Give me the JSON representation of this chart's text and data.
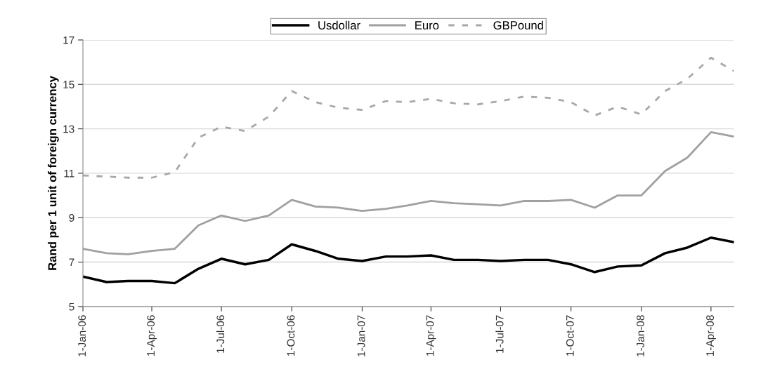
{
  "chart_data": {
    "type": "line",
    "ylabel": "Rand per 1 unit of foreign currency",
    "x": [
      "2006-01-01",
      "2006-02-01",
      "2006-03-01",
      "2006-04-01",
      "2006-05-01",
      "2006-06-01",
      "2006-07-01",
      "2006-08-01",
      "2006-09-01",
      "2006-10-01",
      "2006-11-01",
      "2006-12-01",
      "2007-01-01",
      "2007-02-01",
      "2007-03-01",
      "2007-04-01",
      "2007-05-01",
      "2007-06-01",
      "2007-07-01",
      "2007-08-01",
      "2007-09-01",
      "2007-10-01",
      "2007-11-01",
      "2007-12-01",
      "2008-01-01",
      "2008-02-01",
      "2008-03-01",
      "2008-04-01",
      "2008-05-01"
    ],
    "series": [
      {
        "name": "Usdollar",
        "color": "#000000",
        "line_style": "solid",
        "values": [
          6.35,
          6.1,
          6.15,
          6.15,
          6.05,
          6.7,
          7.15,
          6.9,
          7.1,
          7.8,
          7.5,
          7.15,
          7.05,
          7.25,
          7.25,
          7.3,
          7.1,
          7.1,
          7.05,
          7.1,
          7.1,
          6.9,
          6.55,
          6.8,
          6.85,
          7.4,
          7.65,
          8.1,
          7.9
        ]
      },
      {
        "name": "Euro",
        "color": "#a0a0a0",
        "line_style": "solid",
        "values": [
          7.6,
          7.4,
          7.35,
          7.5,
          7.6,
          8.65,
          9.1,
          8.85,
          9.1,
          9.8,
          9.5,
          9.45,
          9.3,
          9.4,
          9.55,
          9.75,
          9.65,
          9.6,
          9.55,
          9.75,
          9.75,
          9.8,
          9.45,
          10.0,
          10.0,
          11.1,
          11.7,
          12.85,
          12.65
        ]
      },
      {
        "name": "GBPound",
        "color": "#a8a8a8",
        "line_style": "dashed",
        "values": [
          10.9,
          10.85,
          10.8,
          10.8,
          11.05,
          12.6,
          13.1,
          12.9,
          13.55,
          14.7,
          14.2,
          13.95,
          13.85,
          14.25,
          14.2,
          14.35,
          14.15,
          14.1,
          14.25,
          14.45,
          14.4,
          14.2,
          13.6,
          14.0,
          13.65,
          14.7,
          15.25,
          16.2,
          15.6
        ]
      }
    ],
    "xlim": [
      "2006-01-01",
      "2008-05-01"
    ],
    "xticks": [
      {
        "value": "2006-01-01",
        "label": "1-Jan-06"
      },
      {
        "value": "2006-04-01",
        "label": "1-Apr-06"
      },
      {
        "value": "2006-07-01",
        "label": "1-Jul-06"
      },
      {
        "value": "2006-10-01",
        "label": "1-Oct-06"
      },
      {
        "value": "2007-01-01",
        "label": "1-Jan-07"
      },
      {
        "value": "2007-04-01",
        "label": "1-Apr-07"
      },
      {
        "value": "2007-07-01",
        "label": "1-Jul-07"
      },
      {
        "value": "2007-10-01",
        "label": "1-Oct-07"
      },
      {
        "value": "2008-01-01",
        "label": "1-Jan-08"
      },
      {
        "value": "2008-04-01",
        "label": "1-Apr-08"
      }
    ],
    "ylim": [
      5,
      17
    ],
    "yticks": [
      5,
      7,
      9,
      11,
      13,
      15,
      17
    ],
    "grid": "y",
    "legend": "top",
    "marker": "none"
  }
}
